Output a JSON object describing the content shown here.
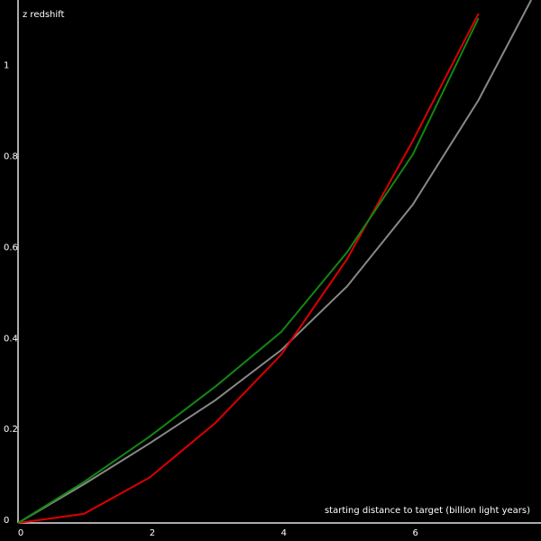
{
  "chart_data": {
    "type": "line",
    "ylabel": "z redshift",
    "xlabel": "starting distance to target (billion light years)",
    "x": [
      0,
      1,
      2,
      3,
      4,
      5,
      6,
      7,
      7.8
    ],
    "series": [
      {
        "color": "#888888",
        "values": [
          0,
          0.085,
          0.175,
          0.27,
          0.38,
          0.52,
          0.7,
          0.93,
          1.15
        ]
      },
      {
        "color": "#dd0000",
        "values": [
          0,
          0.02,
          0.1,
          0.22,
          0.37,
          0.58,
          0.84,
          1.12,
          null
        ]
      },
      {
        "color": "#118811",
        "values": [
          0,
          0.09,
          0.19,
          0.3,
          0.42,
          0.595,
          0.81,
          1.11,
          null
        ]
      }
    ],
    "xlim": [
      0,
      7.95
    ],
    "ylim": [
      0,
      1.15
    ],
    "xticks": [
      0,
      2,
      4,
      6
    ],
    "yticks": [
      0,
      0.2,
      0.4,
      0.6,
      0.8,
      1
    ],
    "grid": false
  }
}
